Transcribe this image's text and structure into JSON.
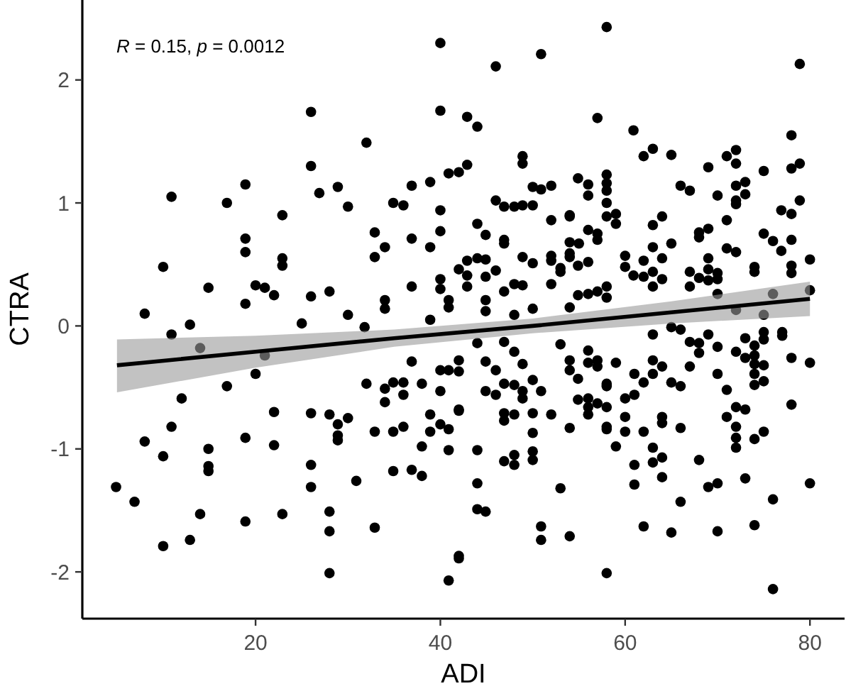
{
  "chart_data": {
    "type": "scatter",
    "xlabel": "ADI",
    "ylabel": "CTRA",
    "annotations": [
      "R = 0.15, p = 0.0012"
    ],
    "xlim": [
      1.25,
      83.75
    ],
    "ylim": [
      -2.38,
      2.65
    ],
    "xticks": [
      20,
      40,
      60,
      80
    ],
    "yticks": [
      -2,
      -1,
      0,
      1,
      2
    ],
    "grid": false,
    "series": [
      {
        "marker": "circle",
        "color": "#000000",
        "x": [
          4.9,
          6.9,
          8,
          10,
          10,
          10.9,
          10.9,
          12,
          8,
          12.9,
          12.9,
          10.9,
          14,
          14,
          14.9,
          14.9,
          14.9,
          16.9,
          10,
          14.9,
          16.9,
          18.9,
          18.9,
          18.9,
          18.9,
          20,
          21,
          22,
          22.9,
          22.9,
          22.9,
          26,
          26,
          26,
          26.9,
          28,
          28.9,
          30,
          30,
          32,
          32.9,
          32.9,
          34,
          34,
          34,
          34.9,
          36,
          36.9,
          36.9,
          36.9,
          38.9,
          38.9,
          40,
          40,
          40,
          40,
          40,
          40,
          40.9,
          40.9,
          40.9,
          20,
          21,
          22,
          22,
          18.9,
          18.9,
          22.9,
          25,
          26,
          26,
          26,
          28,
          28,
          28,
          28,
          28.9,
          28.9,
          28.9,
          30,
          30.9,
          32,
          32.9,
          32.9,
          34,
          34,
          34.9,
          36,
          36,
          34.9,
          36,
          34.9,
          36.9,
          36.9,
          38,
          38,
          38,
          38.9,
          38.9,
          40,
          40.9,
          40,
          40,
          40.9,
          40.9,
          40.9,
          42,
          42,
          31.8,
          38.9,
          46,
          50.9,
          58,
          78.9,
          42.9,
          44,
          57,
          60.9,
          62,
          63,
          65,
          71,
          72,
          72,
          78,
          78,
          78.9,
          75,
          48.9,
          48.9,
          69,
          42,
          42.9,
          50,
          50.9,
          52,
          54.9,
          56,
          56,
          58,
          58,
          58,
          58,
          58,
          59,
          59,
          46,
          46.9,
          48,
          48.9,
          50,
          52,
          44,
          44.9,
          46.9,
          46.9,
          54,
          54,
          56,
          57,
          57,
          54,
          55,
          54,
          66,
          67,
          70,
          71,
          72,
          73,
          73,
          72,
          72,
          76.9,
          78,
          78.9,
          63,
          64,
          65,
          68,
          68,
          69,
          75,
          76,
          76.9,
          78,
          71,
          72,
          42,
          42.9,
          44,
          44.9,
          46,
          42.9,
          42.9,
          44.9,
          46.9,
          48,
          48.9,
          48.9,
          50,
          52,
          52,
          52,
          53,
          53,
          54,
          54.9,
          56,
          60,
          60,
          60.9,
          62,
          63,
          63,
          64,
          62,
          63,
          64,
          67,
          68,
          69,
          69,
          70,
          70,
          67,
          69,
          74,
          74,
          78,
          78,
          80,
          80,
          54.9,
          56,
          57,
          58,
          58,
          54,
          50,
          48,
          44.9,
          44.9,
          72,
          75,
          76,
          70,
          42,
          42,
          42,
          44,
          44.9,
          46,
          44.9,
          46,
          44,
          44,
          44,
          44.9,
          42,
          46.9,
          48,
          48.9,
          50,
          50.9,
          46.9,
          48,
          48.9,
          48.9,
          46.9,
          46.9,
          48,
          46.9,
          48,
          48,
          50,
          50,
          50,
          50,
          52,
          54,
          50.9,
          50.9,
          54,
          53,
          53,
          54,
          54,
          54.9,
          56,
          56,
          57,
          57,
          58,
          58,
          54.9,
          56,
          56,
          56,
          57,
          58,
          58,
          58,
          59,
          58,
          59,
          60,
          60,
          60,
          61,
          61,
          62,
          63,
          63,
          64,
          65,
          66,
          61,
          61,
          62,
          63,
          63,
          64,
          64,
          64,
          64,
          62,
          65,
          66,
          66,
          63,
          65,
          66,
          67,
          68,
          68,
          67,
          69,
          70,
          68,
          69,
          70,
          70,
          70,
          71,
          71,
          72,
          72,
          72,
          72,
          73,
          73,
          74,
          75,
          74,
          72,
          73,
          73,
          74,
          74,
          74,
          74,
          74,
          75,
          75,
          75,
          75,
          76,
          76,
          77,
          77,
          78,
          78,
          80,
          80
        ],
        "values": [
          -1.31,
          -1.43,
          0.1,
          -1.06,
          -1.79,
          1.05,
          -0.82,
          -0.59,
          -0.94,
          -1.74,
          0.01,
          -0.07,
          -0.18,
          -1.53,
          -1.0,
          -1.14,
          -1.18,
          -0.49,
          0.48,
          0.31,
          1.0,
          1.15,
          0.71,
          0.6,
          0.18,
          0.33,
          0.31,
          0.25,
          0.9,
          0.55,
          0.49,
          1.74,
          1.3,
          0.24,
          1.08,
          0.28,
          1.13,
          0.97,
          0.09,
          1.49,
          0.76,
          0.56,
          0.64,
          0.21,
          0.14,
          1.0,
          0.98,
          1.14,
          0.71,
          0.32,
          1.17,
          0.64,
          2.3,
          1.75,
          0.94,
          0.77,
          0.38,
          0.3,
          1.24,
          0.21,
          0.15,
          -0.39,
          -0.24,
          -0.7,
          -0.97,
          -0.91,
          -1.59,
          -1.53,
          0.02,
          -0.71,
          -1.13,
          -1.31,
          -0.72,
          -1.51,
          -1.67,
          -2.01,
          -0.8,
          -0.89,
          -0.93,
          -0.75,
          -1.26,
          -0.47,
          -0.86,
          -1.64,
          -0.51,
          -0.62,
          -0.46,
          -0.46,
          -0.56,
          -0.86,
          -0.82,
          -1.18,
          -0.29,
          -1.17,
          -0.47,
          -0.98,
          -1.22,
          -0.72,
          -0.86,
          -0.36,
          -0.36,
          -0.53,
          -0.8,
          -0.84,
          -1.01,
          -2.07,
          -1.89,
          -0.69,
          -0.01,
          0.05,
          2.11,
          2.21,
          2.43,
          2.13,
          1.7,
          1.62,
          1.69,
          1.59,
          1.38,
          1.44,
          1.39,
          1.38,
          1.43,
          1.32,
          1.55,
          1.28,
          1.32,
          1.26,
          1.38,
          1.32,
          1.29,
          1.25,
          1.31,
          1.13,
          1.11,
          1.14,
          1.2,
          1.15,
          1.06,
          1.23,
          1.16,
          1.1,
          1.0,
          0.89,
          0.91,
          0.83,
          1.02,
          0.97,
          0.97,
          0.98,
          0.98,
          0.86,
          0.83,
          0.74,
          0.7,
          0.67,
          0.9,
          0.89,
          0.78,
          0.75,
          0.7,
          0.68,
          0.67,
          0.59,
          1.14,
          1.1,
          1.06,
          0.86,
          1.14,
          1.17,
          1.07,
          1.02,
          0.99,
          0.94,
          0.91,
          1.02,
          0.82,
          0.89,
          0.67,
          0.76,
          0.72,
          0.79,
          0.75,
          0.69,
          0.61,
          0.7,
          0.63,
          0.6,
          0.46,
          0.53,
          0.55,
          0.54,
          0.45,
          0.41,
          0.32,
          0.4,
          0.28,
          0.34,
          0.33,
          0.56,
          0.51,
          0.57,
          0.53,
          0.34,
          0.47,
          0.44,
          0.56,
          0.49,
          0.52,
          0.57,
          0.48,
          0.41,
          0.4,
          0.44,
          0.32,
          0.38,
          0.53,
          0.64,
          0.55,
          0.44,
          0.39,
          0.46,
          0.37,
          0.43,
          0.38,
          0.32,
          0.55,
          0.48,
          0.44,
          0.49,
          0.43,
          0.54,
          0.29,
          0.25,
          0.26,
          0.28,
          0.32,
          0.23,
          0.15,
          0.14,
          0.09,
          0.21,
          0.12,
          0.13,
          0.09,
          0.26,
          0.26,
          -0.28,
          -0.37,
          -0.68,
          -0.14,
          -0.29,
          -0.36,
          -0.53,
          -0.56,
          -1.01,
          -1.28,
          -1.49,
          -1.51,
          -1.87,
          -0.13,
          -0.21,
          -0.31,
          -0.44,
          -0.53,
          -0.47,
          -0.48,
          -0.53,
          -0.59,
          -0.71,
          -0.77,
          -0.72,
          -1.1,
          -1.05,
          -1.13,
          -0.71,
          -0.87,
          -1.02,
          -1.09,
          -0.72,
          -0.83,
          -1.63,
          -1.74,
          -1.71,
          -1.32,
          -0.15,
          -0.28,
          -0.36,
          -0.43,
          -0.2,
          -0.3,
          -0.28,
          -0.33,
          -0.47,
          -0.49,
          -0.6,
          -0.59,
          -0.66,
          -0.72,
          -0.63,
          -0.66,
          -0.82,
          -0.84,
          -0.98,
          -2.01,
          -0.3,
          -0.59,
          -0.74,
          -0.86,
          -0.56,
          -0.39,
          -0.46,
          -0.39,
          -0.28,
          -0.33,
          -0.46,
          -0.49,
          -1.13,
          -1.29,
          -0.86,
          -0.99,
          -1.11,
          -0.74,
          -0.79,
          -1.07,
          -1.23,
          -1.63,
          -1.68,
          -1.43,
          -0.83,
          -0.07,
          -0.01,
          -0.03,
          -0.13,
          -0.14,
          -0.22,
          -0.33,
          -0.07,
          -0.17,
          -1.09,
          -1.31,
          -1.28,
          -1.67,
          -0.39,
          -0.52,
          -0.74,
          -0.66,
          -0.82,
          -0.91,
          -0.99,
          -0.68,
          -1.24,
          -1.62,
          -0.86,
          -0.92,
          -0.21,
          -0.1,
          -0.26,
          -0.16,
          -0.24,
          -0.31,
          -0.39,
          -0.48,
          -0.05,
          -0.11,
          -0.32,
          -0.45,
          -1.41,
          -2.14,
          -0.05,
          -0.08,
          -0.26,
          -0.64,
          -0.3,
          -1.28
        ]
      },
      {
        "type": "line",
        "color": "#000000",
        "x": [
          5,
          20,
          35,
          50,
          65,
          80
        ],
        "values": [
          -0.32,
          -0.21,
          -0.1,
          0,
          0.11,
          0.22
        ],
        "lower": [
          -0.54,
          -0.34,
          -0.17,
          -0.06,
          0.02,
          0.08
        ],
        "upper": [
          -0.11,
          -0.08,
          -0.03,
          0.06,
          0.2,
          0.36
        ]
      }
    ]
  }
}
